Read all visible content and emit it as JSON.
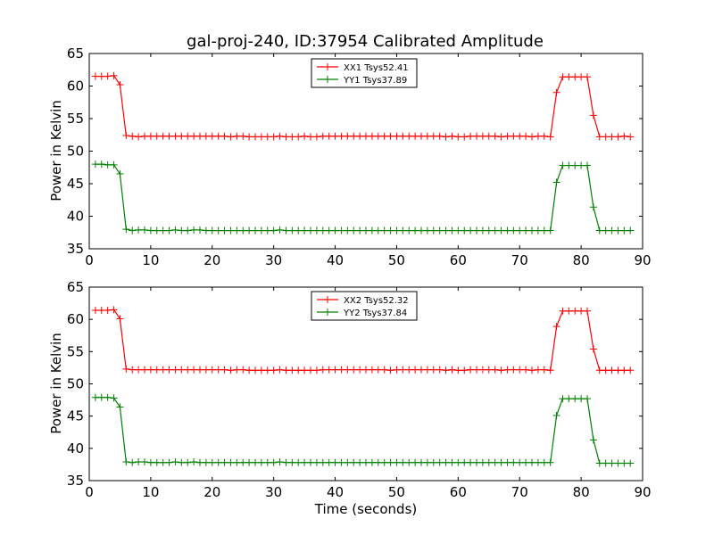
{
  "chart_data": [
    {
      "type": "line",
      "title": "gal-proj-240, ID:37954 Calibrated Amplitude",
      "xlabel": "",
      "ylabel": "Power in Kelvin",
      "xlim": [
        0,
        90
      ],
      "ylim": [
        35,
        65
      ],
      "xticks": [
        0,
        10,
        20,
        30,
        40,
        50,
        60,
        70,
        80,
        90
      ],
      "yticks": [
        35,
        40,
        45,
        50,
        55,
        60,
        65
      ],
      "grid": false,
      "legend_position": "top-center",
      "x": [
        1,
        2,
        3,
        4,
        5,
        6,
        7,
        8,
        9,
        10,
        11,
        12,
        13,
        14,
        15,
        16,
        17,
        18,
        19,
        20,
        21,
        22,
        23,
        24,
        25,
        26,
        27,
        28,
        29,
        30,
        31,
        32,
        33,
        34,
        35,
        36,
        37,
        38,
        39,
        40,
        41,
        42,
        43,
        44,
        45,
        46,
        47,
        48,
        49,
        50,
        51,
        52,
        53,
        54,
        55,
        56,
        57,
        58,
        59,
        60,
        61,
        62,
        63,
        64,
        65,
        66,
        67,
        68,
        69,
        70,
        71,
        72,
        73,
        74,
        75,
        76,
        77,
        78,
        79,
        80,
        81,
        82,
        83,
        84,
        85,
        86,
        87,
        88
      ],
      "series": [
        {
          "name": "XX1 Tsys52.41",
          "color": "#ff0000",
          "values": [
            61.5,
            61.5,
            61.5,
            61.6,
            60.2,
            52.4,
            52.3,
            52.2,
            52.3,
            52.3,
            52.3,
            52.3,
            52.3,
            52.3,
            52.3,
            52.3,
            52.3,
            52.3,
            52.3,
            52.3,
            52.3,
            52.3,
            52.2,
            52.3,
            52.3,
            52.2,
            52.2,
            52.2,
            52.2,
            52.2,
            52.3,
            52.2,
            52.2,
            52.2,
            52.3,
            52.2,
            52.2,
            52.3,
            52.3,
            52.3,
            52.3,
            52.3,
            52.3,
            52.3,
            52.3,
            52.3,
            52.3,
            52.3,
            52.3,
            52.3,
            52.3,
            52.3,
            52.3,
            52.3,
            52.3,
            52.3,
            52.3,
            52.2,
            52.3,
            52.2,
            52.2,
            52.3,
            52.3,
            52.3,
            52.3,
            52.3,
            52.2,
            52.3,
            52.3,
            52.3,
            52.3,
            52.2,
            52.3,
            52.3,
            52.2,
            59.0,
            61.4,
            61.4,
            61.4,
            61.4,
            61.4,
            55.5,
            52.2,
            52.2,
            52.2,
            52.2,
            52.3,
            52.2
          ]
        },
        {
          "name": "YY1 Tsys37.89",
          "color": "#008000",
          "values": [
            48.0,
            48.0,
            47.9,
            47.9,
            46.5,
            38.0,
            37.8,
            37.9,
            37.9,
            37.8,
            37.8,
            37.8,
            37.8,
            37.9,
            37.8,
            37.8,
            37.9,
            37.9,
            37.8,
            37.8,
            37.8,
            37.8,
            37.8,
            37.8,
            37.8,
            37.8,
            37.8,
            37.8,
            37.8,
            37.8,
            37.9,
            37.8,
            37.8,
            37.8,
            37.8,
            37.8,
            37.8,
            37.8,
            37.8,
            37.8,
            37.8,
            37.8,
            37.8,
            37.8,
            37.8,
            37.8,
            37.8,
            37.8,
            37.8,
            37.8,
            37.8,
            37.8,
            37.8,
            37.8,
            37.8,
            37.8,
            37.8,
            37.8,
            37.8,
            37.8,
            37.8,
            37.8,
            37.8,
            37.8,
            37.8,
            37.8,
            37.8,
            37.8,
            37.8,
            37.8,
            37.8,
            37.8,
            37.8,
            37.8,
            37.8,
            45.2,
            47.8,
            47.8,
            47.8,
            47.8,
            47.8,
            41.4,
            37.8,
            37.8,
            37.8,
            37.8,
            37.8,
            37.8
          ]
        }
      ]
    },
    {
      "type": "line",
      "title": "",
      "xlabel": "Time (seconds)",
      "ylabel": "Power in Kelvin",
      "xlim": [
        0,
        90
      ],
      "ylim": [
        35,
        65
      ],
      "xticks": [
        0,
        10,
        20,
        30,
        40,
        50,
        60,
        70,
        80,
        90
      ],
      "yticks": [
        35,
        40,
        45,
        50,
        55,
        60,
        65
      ],
      "grid": false,
      "legend_position": "top-center",
      "x": [
        1,
        2,
        3,
        4,
        5,
        6,
        7,
        8,
        9,
        10,
        11,
        12,
        13,
        14,
        15,
        16,
        17,
        18,
        19,
        20,
        21,
        22,
        23,
        24,
        25,
        26,
        27,
        28,
        29,
        30,
        31,
        32,
        33,
        34,
        35,
        36,
        37,
        38,
        39,
        40,
        41,
        42,
        43,
        44,
        45,
        46,
        47,
        48,
        49,
        50,
        51,
        52,
        53,
        54,
        55,
        56,
        57,
        58,
        59,
        60,
        61,
        62,
        63,
        64,
        65,
        66,
        67,
        68,
        69,
        70,
        71,
        72,
        73,
        74,
        75,
        76,
        77,
        78,
        79,
        80,
        81,
        82,
        83,
        84,
        85,
        86,
        87,
        88
      ],
      "series": [
        {
          "name": "XX2 Tsys52.32",
          "color": "#ff0000",
          "values": [
            61.4,
            61.4,
            61.4,
            61.5,
            60.1,
            52.3,
            52.2,
            52.2,
            52.2,
            52.2,
            52.2,
            52.2,
            52.2,
            52.2,
            52.2,
            52.2,
            52.2,
            52.2,
            52.2,
            52.2,
            52.2,
            52.2,
            52.1,
            52.2,
            52.2,
            52.1,
            52.1,
            52.1,
            52.1,
            52.1,
            52.2,
            52.1,
            52.1,
            52.1,
            52.1,
            52.1,
            52.1,
            52.2,
            52.2,
            52.2,
            52.2,
            52.2,
            52.2,
            52.2,
            52.2,
            52.2,
            52.2,
            52.2,
            52.1,
            52.2,
            52.2,
            52.2,
            52.2,
            52.2,
            52.2,
            52.2,
            52.2,
            52.1,
            52.2,
            52.1,
            52.1,
            52.2,
            52.2,
            52.2,
            52.2,
            52.2,
            52.1,
            52.2,
            52.2,
            52.2,
            52.2,
            52.1,
            52.2,
            52.2,
            52.1,
            58.9,
            61.3,
            61.3,
            61.3,
            61.3,
            61.3,
            55.4,
            52.1,
            52.1,
            52.1,
            52.1,
            52.1,
            52.1
          ]
        },
        {
          "name": "YY2 Tsys37.84",
          "color": "#008000",
          "values": [
            47.9,
            47.9,
            47.9,
            47.8,
            46.4,
            37.9,
            37.8,
            37.9,
            37.9,
            37.8,
            37.8,
            37.8,
            37.8,
            37.9,
            37.8,
            37.8,
            37.9,
            37.8,
            37.8,
            37.8,
            37.8,
            37.8,
            37.8,
            37.8,
            37.8,
            37.8,
            37.8,
            37.8,
            37.8,
            37.8,
            37.9,
            37.8,
            37.8,
            37.8,
            37.8,
            37.8,
            37.8,
            37.8,
            37.8,
            37.8,
            37.8,
            37.8,
            37.8,
            37.8,
            37.8,
            37.8,
            37.8,
            37.8,
            37.8,
            37.8,
            37.8,
            37.8,
            37.8,
            37.8,
            37.8,
            37.8,
            37.8,
            37.8,
            37.8,
            37.8,
            37.8,
            37.8,
            37.8,
            37.8,
            37.8,
            37.8,
            37.8,
            37.8,
            37.8,
            37.8,
            37.8,
            37.8,
            37.8,
            37.8,
            37.8,
            45.1,
            47.7,
            47.7,
            47.7,
            47.7,
            47.7,
            41.3,
            37.7,
            37.7,
            37.7,
            37.7,
            37.7,
            37.7
          ]
        }
      ]
    }
  ]
}
